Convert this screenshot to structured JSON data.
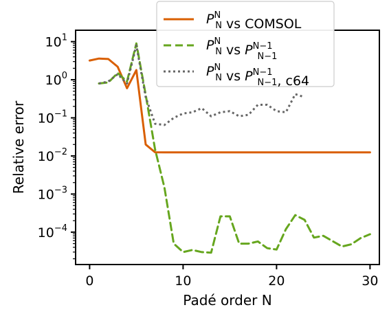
{
  "chart_data": {
    "type": "line",
    "xlabel": "Padé order N",
    "ylabel": "Relative error",
    "xlim": [
      -1.5,
      31.0
    ],
    "ylim": [
      -4.85,
      1.3
    ],
    "yscale": "log",
    "grid": false,
    "legend_placement": "top-right",
    "x_ticks": [
      0,
      10,
      20,
      30
    ],
    "x_tick_labels": [
      "0",
      "10",
      "20",
      "30"
    ],
    "y_ticks": [
      1,
      0,
      -1,
      -2,
      -3,
      -4
    ],
    "y_tick_labels": [
      {
        "base": "10",
        "exp": "1"
      },
      {
        "base": "10",
        "exp": "0"
      },
      {
        "base": "10",
        "exp": "−1"
      },
      {
        "base": "10",
        "exp": "−2"
      },
      {
        "base": "10",
        "exp": "−3"
      },
      {
        "base": "10",
        "exp": "−4"
      }
    ],
    "series": [
      {
        "legend": {
          "main": "P",
          "sup": "N",
          "sub": "N",
          "rest": " vs COMSOL"
        },
        "color": "#d95f02",
        "style": "solid",
        "x": [
          0,
          1,
          2,
          3,
          4,
          5,
          6,
          7,
          8,
          9,
          10,
          11,
          12,
          13,
          14,
          15,
          16,
          17,
          18,
          19,
          20,
          21,
          22,
          23,
          24,
          25,
          26,
          27,
          28,
          29,
          30
        ],
        "y": [
          3.2,
          3.6,
          3.5,
          2.2,
          0.6,
          1.8,
          0.02,
          0.0125,
          0.0124,
          0.0124,
          0.0124,
          0.0124,
          0.0124,
          0.0124,
          0.0124,
          0.0124,
          0.0124,
          0.0124,
          0.0124,
          0.0124,
          0.0124,
          0.0124,
          0.0124,
          0.0124,
          0.0124,
          0.0124,
          0.0124,
          0.0124,
          0.0124,
          0.0124,
          0.0124
        ]
      },
      {
        "legend": {
          "main": "P",
          "sup": "N",
          "sub": "N",
          "rest": " vs ",
          "main2": "P",
          "sup2": "N−1",
          "sub2": "N−1",
          "rest2": ""
        },
        "color": "#66a61e",
        "style": "dashed",
        "x": [
          1,
          2,
          3,
          4,
          5,
          6,
          7,
          8,
          9,
          10,
          11,
          12,
          13,
          14,
          15,
          16,
          17,
          18,
          19,
          20,
          21,
          22,
          23,
          24,
          25,
          26,
          27,
          28,
          29,
          30
        ],
        "y": [
          0.8,
          0.85,
          1.5,
          0.9,
          9.0,
          0.4,
          0.015,
          0.0015,
          5e-05,
          3e-05,
          3.4e-05,
          3e-05,
          2.9e-05,
          0.00026,
          0.00026,
          5e-05,
          5e-05,
          5.7e-05,
          3.8e-05,
          3.5e-05,
          0.00012,
          0.00028,
          0.00021,
          7.2e-05,
          8e-05,
          5.8e-05,
          4.2e-05,
          4.8e-05,
          7e-05,
          8.8e-05
        ]
      },
      {
        "legend": {
          "main": "P",
          "sup": "N",
          "sub": "N",
          "rest": " vs ",
          "main2": "P",
          "sup2": "N−1",
          "sub2": "N−1",
          "rest2": ", c64"
        },
        "color": "#666666",
        "style": "dotted",
        "x": [
          1,
          2,
          3,
          4,
          5,
          6,
          7,
          8,
          9,
          10,
          11,
          12,
          13,
          14,
          15,
          16,
          17,
          18,
          19,
          20,
          21,
          22,
          23
        ],
        "y": [
          0.8,
          0.9,
          1.4,
          0.8,
          8.0,
          0.35,
          0.07,
          0.065,
          0.1,
          0.13,
          0.14,
          0.18,
          0.11,
          0.14,
          0.15,
          0.11,
          0.12,
          0.22,
          0.22,
          0.15,
          0.14,
          0.42,
          0.35
        ]
      }
    ]
  }
}
